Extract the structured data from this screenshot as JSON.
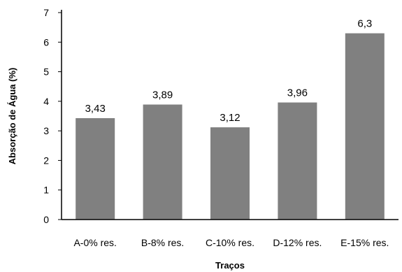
{
  "chart_data": {
    "type": "bar",
    "title": "",
    "xlabel": "Traços",
    "ylabel": "Absorção de Água (%)",
    "categories": [
      "A-0% res.",
      "B-8% res.",
      "C-10% res.",
      "D-12% res.",
      "E-15% res."
    ],
    "values": [
      3.43,
      3.89,
      3.12,
      3.96,
      6.3
    ],
    "value_labels": [
      "3,43",
      "3,89",
      "3,12",
      "3,96",
      "6,3"
    ],
    "yticks": [
      "0",
      "1",
      "2",
      "3",
      "4",
      "5",
      "6",
      "7"
    ],
    "ylim": [
      0,
      7
    ],
    "grid": false,
    "legend": "none",
    "bar_color": "#808080"
  }
}
